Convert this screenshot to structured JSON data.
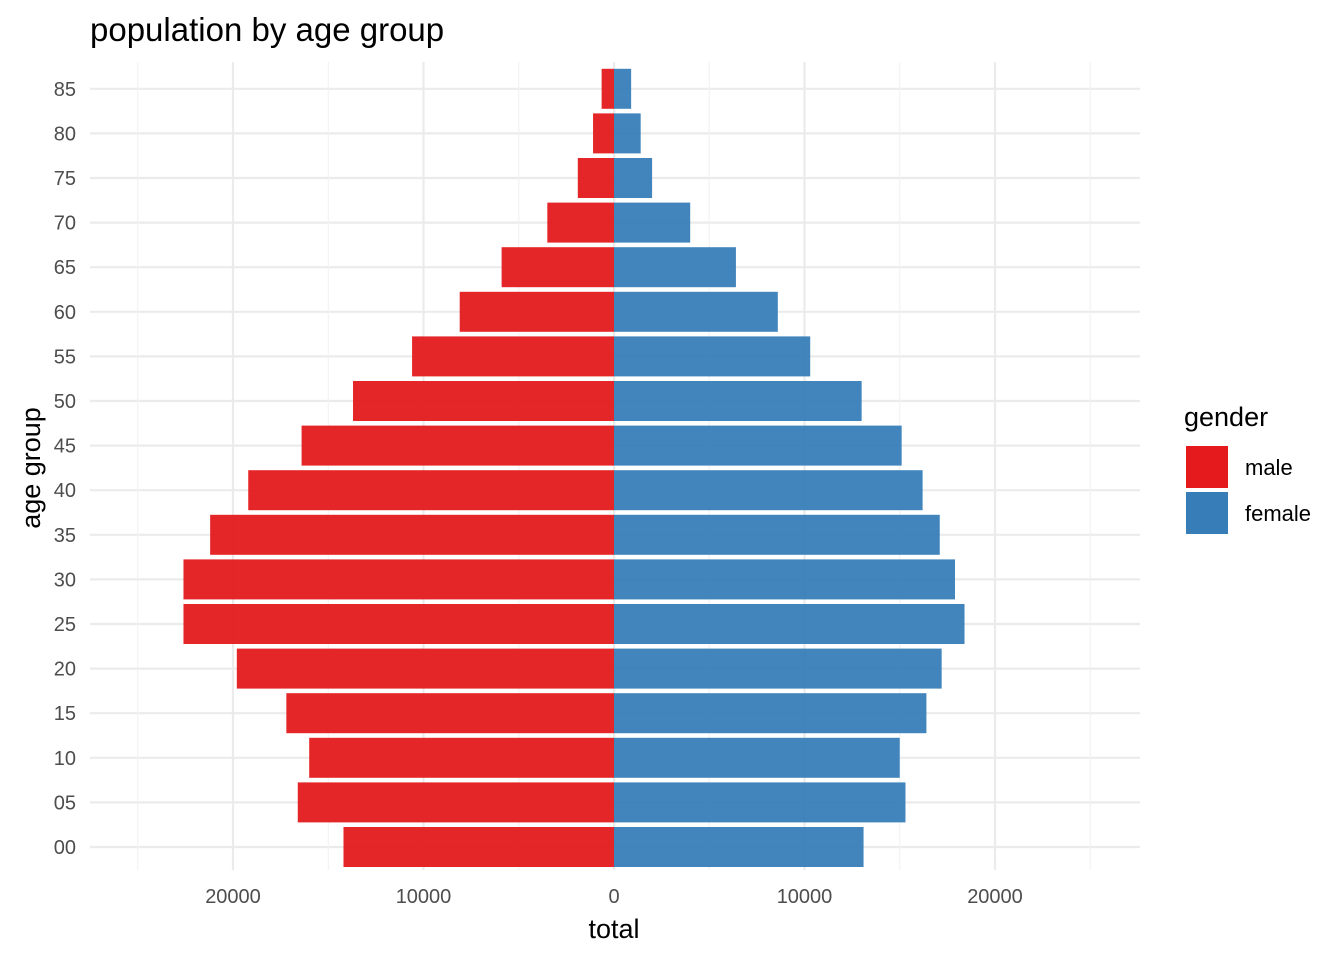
{
  "chart_data": {
    "type": "bar",
    "orientation": "horizontal",
    "diverging": true,
    "title": "population by age group",
    "xlabel": "total",
    "ylabel": "age group",
    "categories": [
      "00",
      "05",
      "10",
      "15",
      "20",
      "25",
      "30",
      "35",
      "40",
      "45",
      "50",
      "55",
      "60",
      "65",
      "70",
      "75",
      "80",
      "85"
    ],
    "series": [
      {
        "name": "male",
        "color": "#E41A1C",
        "values": [
          -14200,
          -16600,
          -16000,
          -17200,
          -19800,
          -22600,
          -22600,
          -21200,
          -19200,
          -16400,
          -13700,
          -10600,
          -8100,
          -5900,
          -3500,
          -1900,
          -1100,
          -650
        ]
      },
      {
        "name": "female",
        "color": "#377EB8",
        "values": [
          13100,
          15300,
          15000,
          16400,
          17200,
          18400,
          17900,
          17100,
          16200,
          15100,
          13000,
          10300,
          8600,
          6400,
          4000,
          2000,
          1400,
          900
        ]
      }
    ],
    "xlim": [
      -27500,
      27500
    ],
    "x_ticks": [
      -20000,
      -10000,
      0,
      10000,
      20000
    ],
    "x_tick_labels": [
      "20000",
      "10000",
      "0",
      "10000",
      "20000"
    ],
    "legend": {
      "title": "gender",
      "position": "right",
      "items": [
        "male",
        "female"
      ]
    },
    "grid": true
  }
}
